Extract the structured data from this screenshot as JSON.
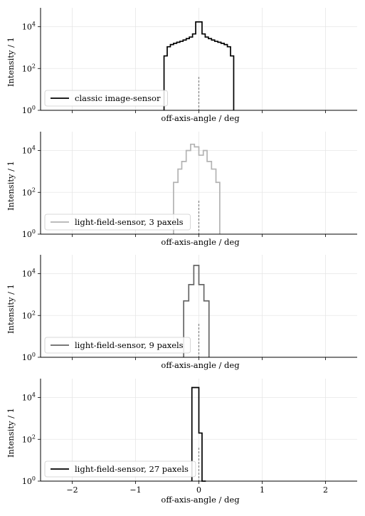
{
  "chart_data": [
    {
      "type": "histogram",
      "panel": 1,
      "xlabel": "off-axis-angle / deg",
      "ylabel": "Intensity / 1",
      "xlim": [
        -2.5,
        2.5
      ],
      "ylim": [
        1,
        80000
      ],
      "yscale": "log",
      "grid": true,
      "legend_position": "lower-left",
      "yticks": [
        {
          "value": 1,
          "base": "10",
          "exp": "0"
        },
        {
          "value": 100,
          "base": "10",
          "exp": "2"
        },
        {
          "value": 10000,
          "base": "10",
          "exp": "4"
        }
      ],
      "marker_x": 0,
      "marker_top": 40,
      "series": [
        {
          "name": "classic image-sensor",
          "color": "#000000",
          "bin_edges": [
            -0.55,
            -0.5,
            -0.45,
            -0.4,
            -0.35,
            -0.3,
            -0.25,
            -0.2,
            -0.15,
            -0.1,
            -0.05,
            0.05,
            0.1,
            0.15,
            0.2,
            0.25,
            0.3,
            0.35,
            0.4,
            0.45,
            0.5,
            0.55
          ],
          "counts": [
            400,
            1100,
            1400,
            1600,
            1800,
            2000,
            2300,
            2700,
            3200,
            4500,
            17000,
            4500,
            3200,
            2700,
            2300,
            2000,
            1800,
            1600,
            1400,
            1100,
            400
          ]
        }
      ]
    },
    {
      "type": "histogram",
      "panel": 2,
      "xlabel": "off-axis-angle / deg",
      "ylabel": "Intensity / 1",
      "xlim": [
        -2.5,
        2.5
      ],
      "ylim": [
        1,
        80000
      ],
      "yscale": "log",
      "grid": true,
      "legend_position": "lower-left",
      "yticks": [
        {
          "value": 1,
          "base": "10",
          "exp": "0"
        },
        {
          "value": 100,
          "base": "10",
          "exp": "2"
        },
        {
          "value": 10000,
          "base": "10",
          "exp": "4"
        }
      ],
      "marker_x": 0,
      "marker_top": 40,
      "series": [
        {
          "name": "light-field-sensor, 3 paxels",
          "color": "#b3b3b3",
          "bin_edges": [
            -0.4,
            -0.33,
            -0.27,
            -0.2,
            -0.13,
            -0.07,
            0.0,
            0.07,
            0.13,
            0.2,
            0.27,
            0.33
          ],
          "counts": [
            300,
            1300,
            3000,
            10000,
            20000,
            15000,
            6000,
            10000,
            3000,
            1300,
            300
          ]
        }
      ]
    },
    {
      "type": "histogram",
      "panel": 3,
      "xlabel": "off-axis-angle / deg",
      "ylabel": "Intensity / 1",
      "xlim": [
        -2.5,
        2.5
      ],
      "ylim": [
        1,
        80000
      ],
      "yscale": "log",
      "grid": true,
      "legend_position": "lower-left",
      "yticks": [
        {
          "value": 1,
          "base": "10",
          "exp": "0"
        },
        {
          "value": 100,
          "base": "10",
          "exp": "2"
        },
        {
          "value": 10000,
          "base": "10",
          "exp": "4"
        }
      ],
      "marker_x": 0,
      "marker_top": 40,
      "series": [
        {
          "name": "light-field-sensor, 9 paxels",
          "color": "#666666",
          "bin_edges": [
            -0.24,
            -0.16,
            -0.08,
            0.0,
            0.08,
            0.16
          ],
          "counts": [
            500,
            3000,
            25000,
            3000,
            500
          ]
        }
      ]
    },
    {
      "type": "histogram",
      "panel": 4,
      "xlabel": "off-axis-angle / deg",
      "ylabel": "Intensity / 1",
      "xlim": [
        -2.5,
        2.5
      ],
      "ylim": [
        1,
        80000
      ],
      "yscale": "log",
      "grid": true,
      "legend_position": "lower-left",
      "xticks": [
        "−2",
        "−1",
        "0",
        "1",
        "2"
      ],
      "xtick_values": [
        -2,
        -1,
        0,
        1,
        2
      ],
      "yticks": [
        {
          "value": 1,
          "base": "10",
          "exp": "0"
        },
        {
          "value": 100,
          "base": "10",
          "exp": "2"
        },
        {
          "value": 10000,
          "base": "10",
          "exp": "4"
        }
      ],
      "marker_x": 0,
      "marker_top": 40,
      "series": [
        {
          "name": "light-field-sensor, 27 paxels",
          "color": "#000000",
          "bin_edges": [
            -0.11,
            0.0,
            0.05,
            0.11
          ],
          "counts": [
            30000,
            200,
            1
          ]
        }
      ]
    }
  ]
}
